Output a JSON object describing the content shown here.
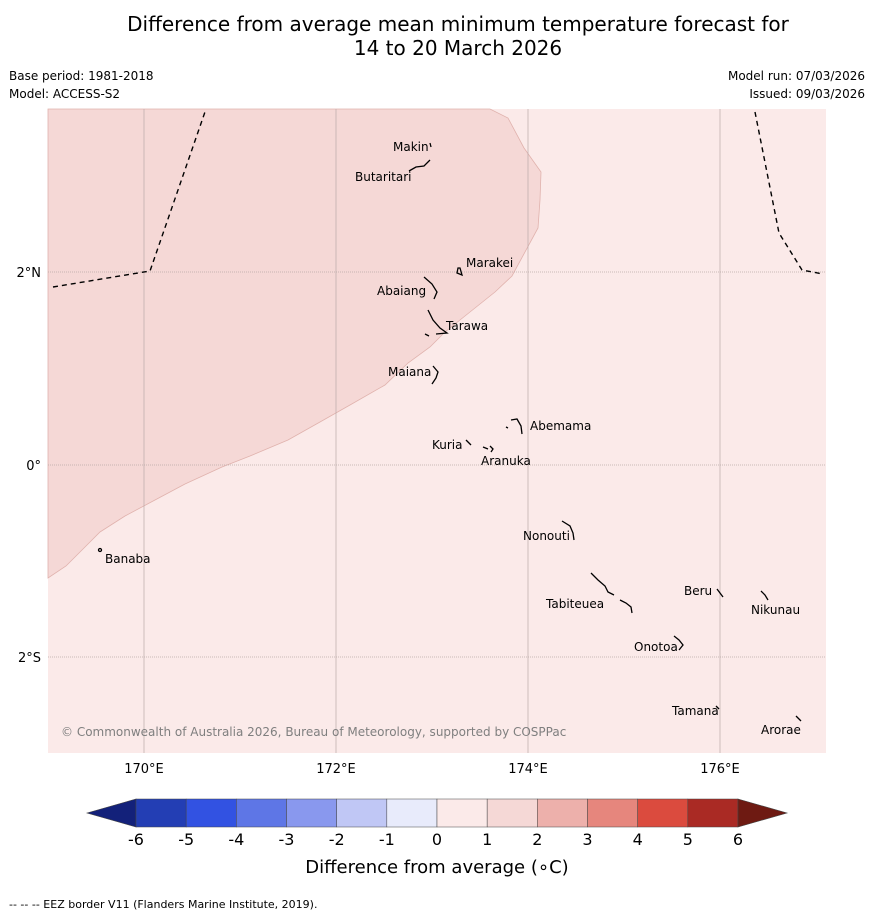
{
  "title": {
    "line1": "Difference from average mean minimum temperature forecast for",
    "line2": "14 to 20 March 2026"
  },
  "meta": {
    "base_period": "Base period: 1981-2018",
    "model": "Model: ACCESS-S2",
    "model_run": "Model run: 07/03/2026",
    "issued": "Issued: 09/03/2026"
  },
  "map": {
    "lon_ticks": [
      "170°E",
      "172°E",
      "174°E",
      "176°E"
    ],
    "lat_ticks": [
      "2°N",
      "0°",
      "2°S"
    ],
    "colors": {
      "anomaly_0_1": "#fbeae9",
      "anomaly_1_2": "#f5d8d6",
      "boundary": "#e0b2ad",
      "gridline": "#b9a9a8"
    },
    "places": {
      "makin": "Makin",
      "butaritari": "Butaritari",
      "marakei": "Marakei",
      "abaiang": "Abaiang",
      "tarawa": "Tarawa",
      "maiana": "Maiana",
      "abemama": "Abemama",
      "kuria": "Kuria",
      "aranuka": "Aranuka",
      "nonouti": "Nonouti",
      "banaba": "Banaba",
      "beru": "Beru",
      "nikunau": "Nikunau",
      "tabiteuea": "Tabiteuea",
      "onotoa": "Onotoa",
      "tamana": "Tamana",
      "arorae": "Arorae"
    },
    "copyright": "© Commonwealth of Australia 2026, Bureau of Meteorology, supported by COSPPac"
  },
  "colorbar": {
    "ticks": [
      "-6",
      "-5",
      "-4",
      "-3",
      "-2",
      "-1",
      "0",
      "1",
      "2",
      "3",
      "4",
      "5",
      "6"
    ],
    "colors": [
      "#13217a",
      "#233eb4",
      "#3252e2",
      "#5e76e6",
      "#8998ee",
      "#c0c7f5",
      "#e8ebfb",
      "#fbeae9",
      "#f5d8d6",
      "#edb0ab",
      "#e6867d",
      "#db4b3e",
      "#aa2a24",
      "#6e1a12"
    ],
    "label": "Difference from average (∘C)"
  },
  "footer": "--  --  -- EEZ border V11 (Flanders Marine Institute, 2019)."
}
